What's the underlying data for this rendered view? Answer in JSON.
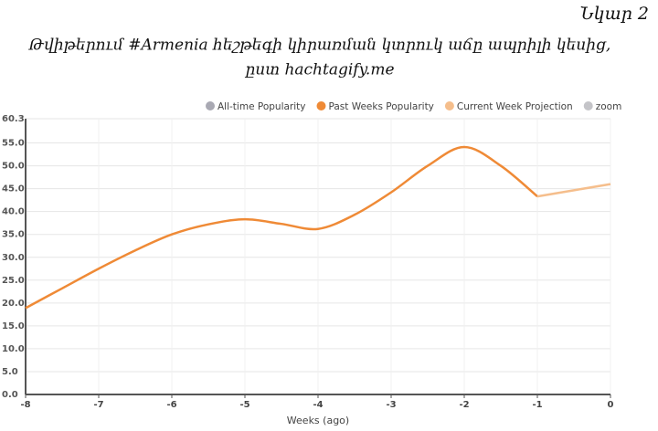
{
  "caption": "Նկար 2",
  "title_lines": [
    "Թվիթերում #Armenia հեշթեգի կիրառման կտրուկ աճը ապրիլի կեսից,",
    "ըստ hachtagify.me"
  ],
  "chart_data": {
    "type": "line",
    "x_label": "Weeks (ago)",
    "series": [
      {
        "name": "All-time Popularity",
        "color": "#a9a9b3",
        "x": [],
        "values": []
      },
      {
        "name": "Past Weeks Popularity",
        "color": "#ef8a36",
        "x": [
          -8,
          -7.5,
          -7,
          -6.5,
          -6,
          -5.5,
          -5,
          -4.5,
          -4,
          -3.5,
          -3,
          -2.5,
          -2,
          -1.5,
          -1
        ],
        "values": [
          18.9,
          23.2,
          27.5,
          31.5,
          35,
          37.2,
          38.3,
          37.3,
          36.2,
          39.3,
          44.2,
          50,
          54.1,
          50,
          43.3
        ]
      },
      {
        "name": "Current Week Projection",
        "color": "#f5be8c",
        "x": [
          -1,
          0
        ],
        "values": [
          43.3,
          46
        ]
      }
    ],
    "zoom_label": "zoom",
    "zoom_color": "#c4c4c8",
    "xlim": [
      -8,
      0
    ],
    "xticks": [
      -8,
      -7,
      -6,
      -5,
      -4,
      -3,
      -2,
      -1,
      0
    ],
    "ylim": [
      0,
      60.3
    ],
    "yticks": [
      {
        "value": 0,
        "label": "0.0"
      },
      {
        "value": 5,
        "label": "5.0"
      },
      {
        "value": 10,
        "label": "10.0"
      },
      {
        "value": 15,
        "label": "15.0"
      },
      {
        "value": 20,
        "label": "20.0"
      },
      {
        "value": 25,
        "label": "25.0"
      },
      {
        "value": 30,
        "label": "30.0"
      },
      {
        "value": 35,
        "label": "35.0"
      },
      {
        "value": 40,
        "label": "40.0"
      },
      {
        "value": 45,
        "label": "45.0"
      },
      {
        "value": 50,
        "label": "50.0"
      },
      {
        "value": 55,
        "label": "55.0"
      },
      60.3
    ],
    "grid": true
  }
}
